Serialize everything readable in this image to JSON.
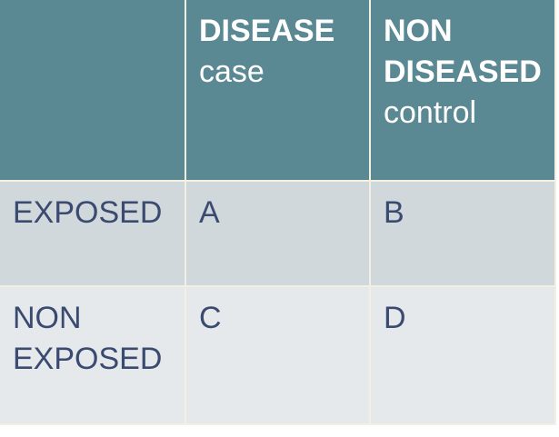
{
  "table": {
    "header": [
      {
        "title": "DISEASE",
        "subtitle": "case"
      },
      {
        "title": "NON DISEASED",
        "subtitle": "control"
      }
    ],
    "rows": [
      [
        "EXPOSED",
        "A",
        "B"
      ],
      [
        "NON EXPOSED",
        "C",
        "D"
      ]
    ]
  }
}
